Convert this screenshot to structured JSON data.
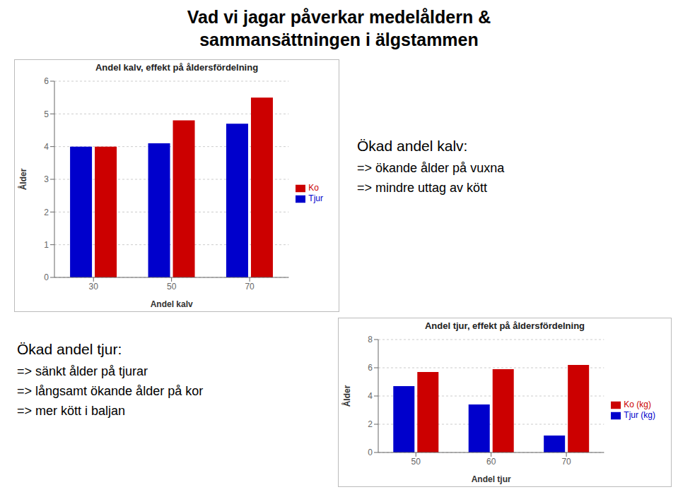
{
  "title": "Vad vi jagar påverkar medelåldern &\nsammansättningen i älgstammen",
  "chart_data": [
    {
      "type": "bar",
      "title": "Andel kalv, effekt på åldersfördelning",
      "xlabel": "Andel kalv",
      "ylabel": "Ålder",
      "categories": [
        30,
        50,
        70
      ],
      "series": [
        {
          "name": "Tjur",
          "color": "#0000cc",
          "values": [
            4.0,
            4.1,
            4.7
          ]
        },
        {
          "name": "Ko",
          "color": "#cc0000",
          "values": [
            4.0,
            4.8,
            5.5
          ]
        }
      ],
      "ylim": [
        0,
        6
      ],
      "yticks": [
        0,
        1,
        2,
        3,
        4,
        5,
        6
      ],
      "grid": true,
      "legend": "right",
      "annotations": [
        "Ökad andel kalv:",
        "=> ökande ålder på vuxna",
        "=> mindre uttag av kött"
      ]
    },
    {
      "type": "bar",
      "title": "Andel tjur, effekt på åldersfördelning",
      "xlabel": "Andel tjur",
      "ylabel": "Ålder",
      "categories": [
        50,
        60,
        70
      ],
      "series": [
        {
          "name": "Tjur (kg)",
          "color": "#0000cc",
          "values": [
            4.7,
            3.4,
            1.2
          ]
        },
        {
          "name": "Ko (kg)",
          "color": "#cc0000",
          "values": [
            5.7,
            5.9,
            6.2
          ]
        }
      ],
      "ylim": [
        0,
        8
      ],
      "yticks": [
        0,
        2,
        4,
        6,
        8
      ],
      "grid": true,
      "legend": "right",
      "annotations": [
        "Ökad andel tjur:",
        "=> sänkt ålder på tjurar",
        "=> långsamt ökande ålder på kor",
        "=> mer kött i baljan"
      ]
    }
  ]
}
